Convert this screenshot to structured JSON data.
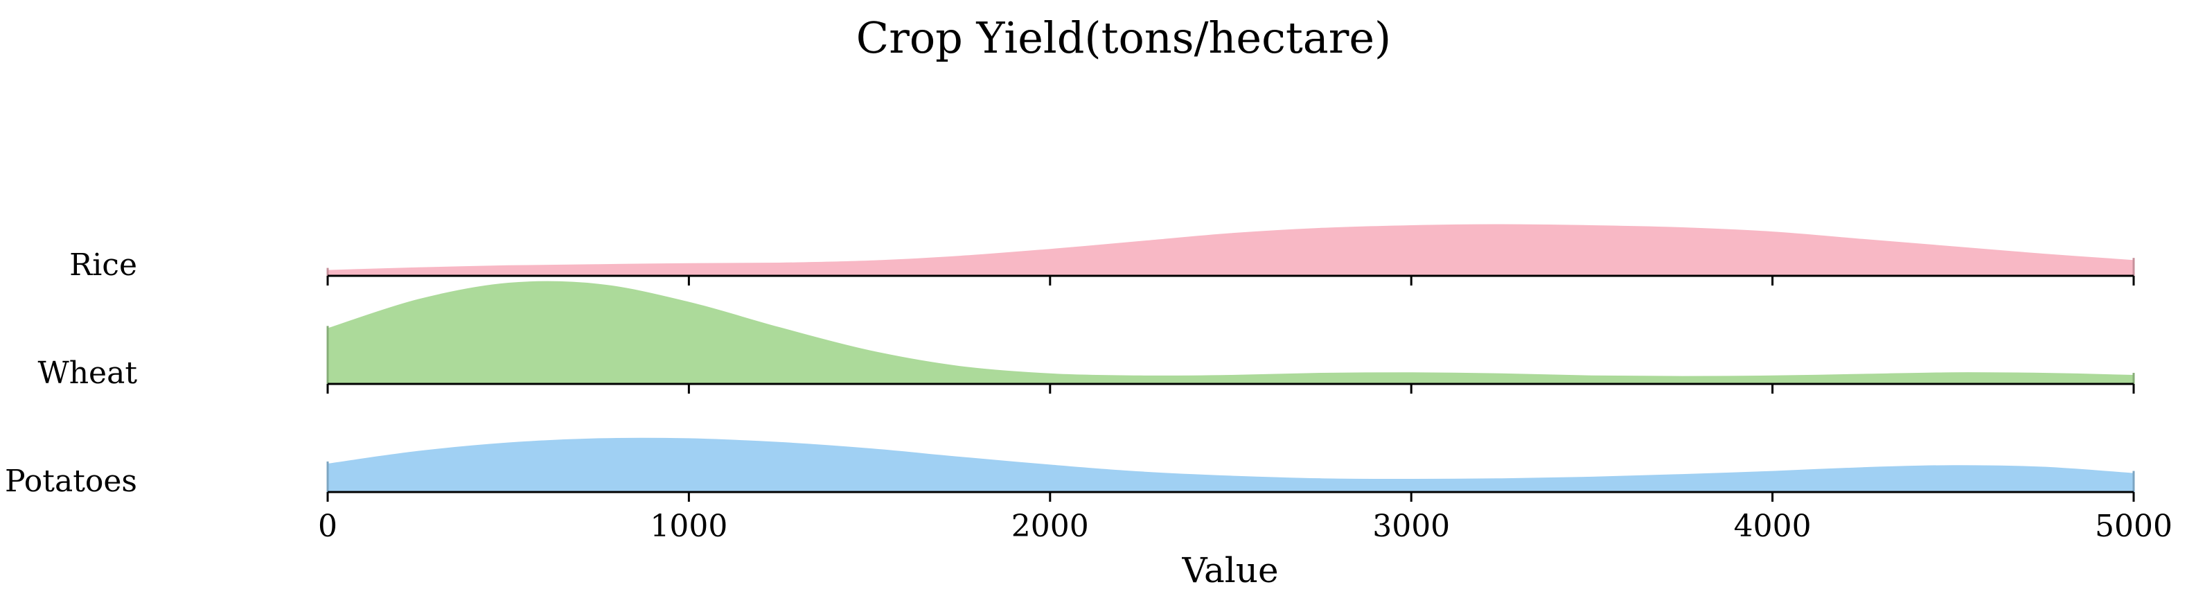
{
  "chart_data": {
    "type": "area",
    "subtype": "ridgeline",
    "title": "Crop Yield(tons/hectare)",
    "xlabel": "Value",
    "ylabel": "",
    "xlim": [
      0,
      5000
    ],
    "xticks": [
      0,
      1000,
      2000,
      3000,
      4000,
      5000
    ],
    "x": [
      0,
      250,
      500,
      750,
      1000,
      1250,
      1500,
      1750,
      2000,
      2250,
      2500,
      2750,
      3000,
      3250,
      3500,
      3750,
      4000,
      4250,
      4500,
      4750,
      5000
    ],
    "series": [
      {
        "name": "Rice",
        "color": "#f8b4c2",
        "values": [
          0.15,
          0.2,
          0.24,
          0.26,
          0.28,
          0.29,
          0.33,
          0.42,
          0.55,
          0.7,
          0.85,
          0.95,
          1.0,
          1.02,
          1.0,
          0.96,
          0.88,
          0.74,
          0.6,
          0.46,
          0.34
        ]
      },
      {
        "name": "Wheat",
        "color": "#a8d895",
        "values": [
          1.1,
          1.65,
          1.96,
          1.94,
          1.6,
          1.12,
          0.68,
          0.38,
          0.24,
          0.2,
          0.21,
          0.25,
          0.26,
          0.24,
          0.2,
          0.19,
          0.2,
          0.23,
          0.26,
          0.25,
          0.21
        ]
      },
      {
        "name": "Potatoes",
        "color": "#9bcef2",
        "values": [
          0.58,
          0.82,
          0.98,
          1.06,
          1.06,
          0.99,
          0.87,
          0.71,
          0.56,
          0.43,
          0.35,
          0.3,
          0.29,
          0.3,
          0.33,
          0.38,
          0.44,
          0.51,
          0.55,
          0.52,
          0.4
        ]
      }
    ],
    "legend": "none",
    "grid": false
  }
}
